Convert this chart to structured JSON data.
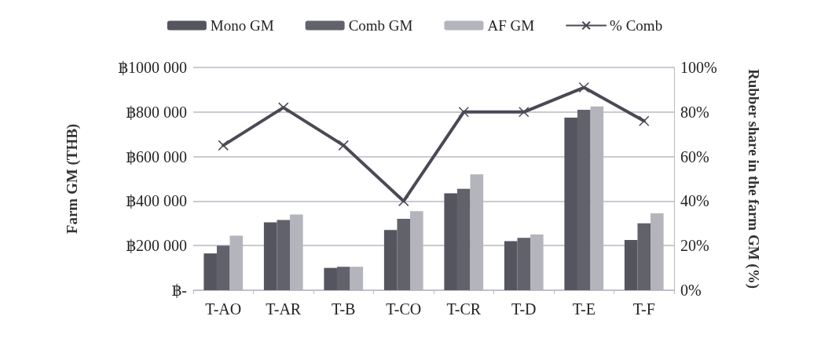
{
  "chart_data": {
    "type": "bar",
    "ylabel": "Farm GM (THB)",
    "y2label": "Rubber share in the farm GM (%)",
    "categories": [
      "T-AO",
      "T-AR",
      "T-B",
      "T-CO",
      "T-CR",
      "T-D",
      "T-E",
      "T-F"
    ],
    "series": [
      {
        "name": "Mono GM",
        "color": "#55555f",
        "values": [
          165000,
          305000,
          100000,
          270000,
          435000,
          220000,
          775000,
          225000
        ]
      },
      {
        "name": "Comb GM",
        "color": "#62626c",
        "values": [
          200000,
          315000,
          105000,
          320000,
          455000,
          235000,
          810000,
          300000
        ]
      },
      {
        "name": "AF GM",
        "color": "#b4b4bc",
        "values": [
          245000,
          340000,
          105000,
          355000,
          520000,
          250000,
          825000,
          345000
        ]
      },
      {
        "name": "% Comb",
        "type": "line",
        "axis": "y2",
        "color": "#4a4a55",
        "marker": "cross",
        "values": [
          65,
          82,
          65,
          40,
          80,
          80,
          91,
          76
        ]
      }
    ],
    "ylim": [
      0,
      1000000
    ],
    "yticks": [
      {
        "value": 0,
        "label": "฿-"
      },
      {
        "value": 200000,
        "label": "฿200 000"
      },
      {
        "value": 400000,
        "label": "฿400 000"
      },
      {
        "value": 600000,
        "label": "฿600 000"
      },
      {
        "value": 800000,
        "label": "฿800 000"
      },
      {
        "value": 1000000,
        "label": "฿1000 000"
      }
    ],
    "y2lim": [
      0,
      100
    ],
    "y2ticks": [
      {
        "value": 0,
        "label": "0%"
      },
      {
        "value": 20,
        "label": "20%"
      },
      {
        "value": 40,
        "label": "40%"
      },
      {
        "value": 60,
        "label": "60%"
      },
      {
        "value": 80,
        "label": "80%"
      },
      {
        "value": 100,
        "label": "100%"
      }
    ],
    "grid": "y",
    "legend": "top"
  }
}
